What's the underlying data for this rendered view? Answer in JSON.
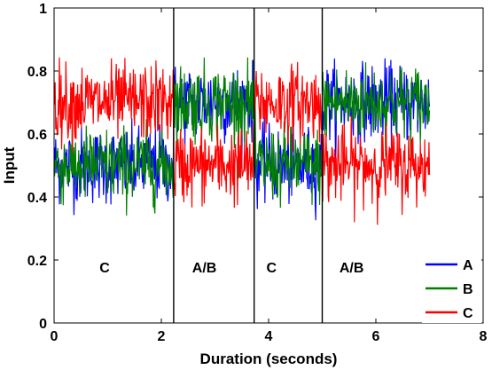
{
  "chart_data": {
    "type": "line",
    "xlabel": "Duration (seconds)",
    "ylabel": "Input",
    "xlim": [
      0,
      8
    ],
    "ylim": [
      0,
      1
    ],
    "x_ticks": [
      "0",
      "2",
      "4",
      "6",
      "8"
    ],
    "y_ticks": [
      "0",
      "0.2",
      "0.4",
      "0.6",
      "0.8",
      "1"
    ],
    "grid": false,
    "legend_position": "bottom-right",
    "duration_end": 7.0,
    "phase_boundaries": [
      2.23,
      3.73,
      5.0
    ],
    "phases": [
      {
        "label": "C",
        "start": 0.0,
        "end": 2.23
      },
      {
        "label": "A/B",
        "start": 2.23,
        "end": 3.73
      },
      {
        "label": "C",
        "start": 3.73,
        "end": 5.0
      },
      {
        "label": "A/B",
        "start": 5.0,
        "end": 7.0
      }
    ],
    "series": [
      {
        "name": "A",
        "color": "#0000ff",
        "mean_by_phase": [
          0.5,
          0.7,
          0.5,
          0.7
        ],
        "noise_sd": 0.06
      },
      {
        "name": "B",
        "color": "#008000",
        "mean_by_phase": [
          0.5,
          0.7,
          0.5,
          0.7
        ],
        "noise_sd": 0.06
      },
      {
        "name": "C",
        "color": "#ff0000",
        "mean_by_phase": [
          0.7,
          0.5,
          0.7,
          0.5
        ],
        "noise_sd": 0.06
      }
    ]
  },
  "colors": {
    "A": "#0000ff",
    "B": "#008000",
    "C": "#ff0000"
  }
}
